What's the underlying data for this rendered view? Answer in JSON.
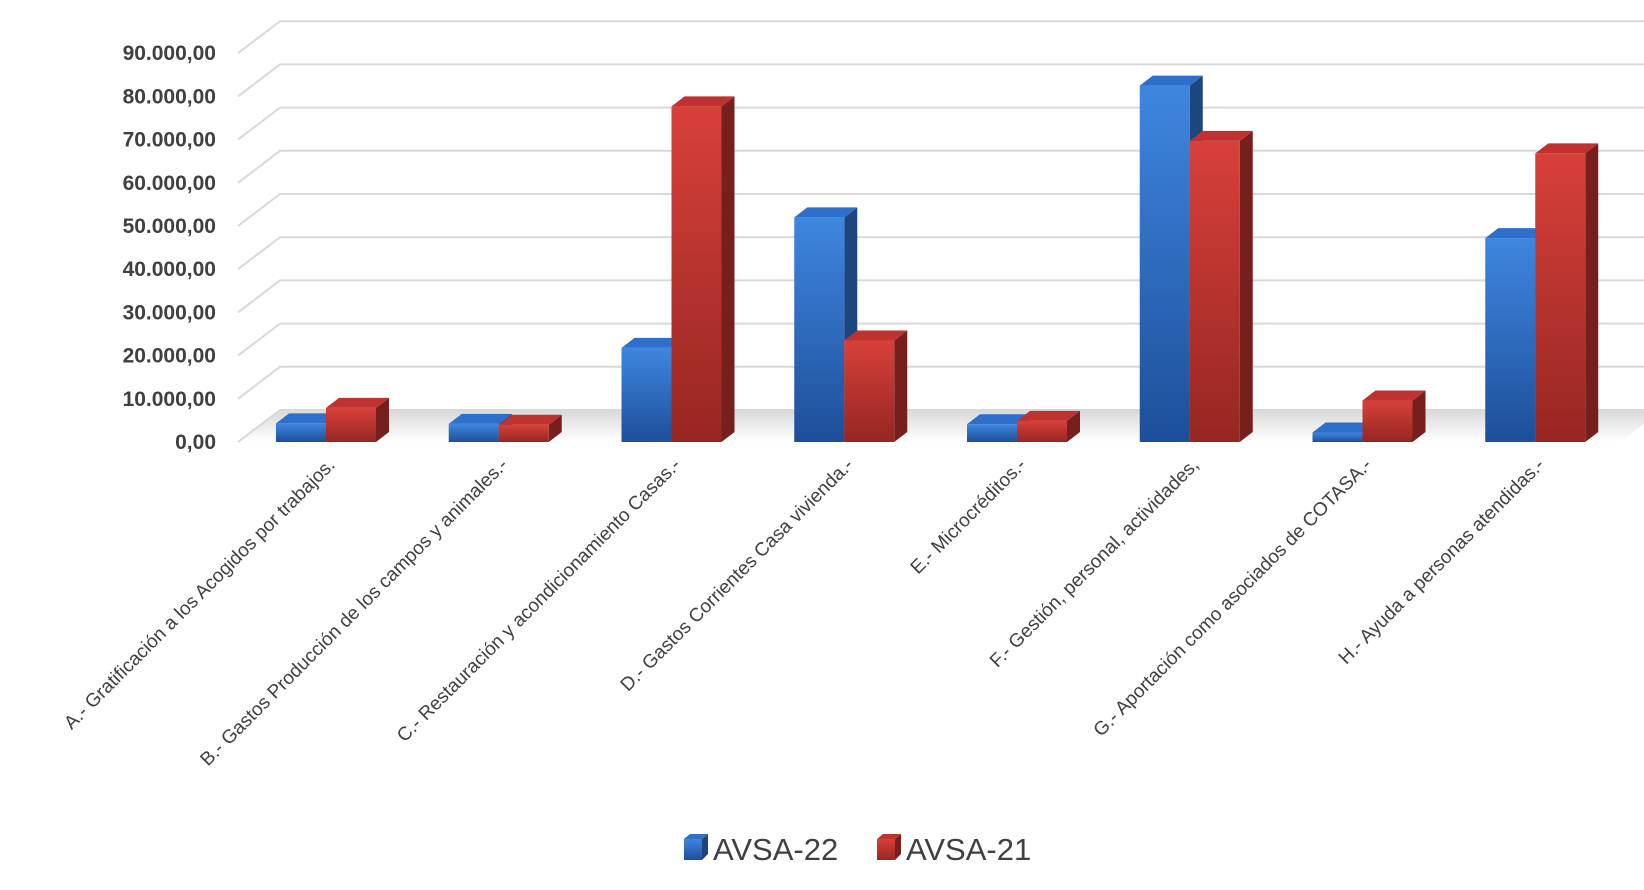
{
  "chart_data": {
    "type": "bar",
    "subtype": "3d-clustered-column",
    "categories": [
      "A.- Gratificación a los Acogidos por trabajos.",
      "B.- Gastos  Producción de los campos y animales.-",
      "C.- Restauración y acondicionamiento Casas.-",
      "D.- Gastos Corrientes Casa vivienda.-",
      "E.- Microcréditos.-",
      "F.- Gestión, personal, actividades,",
      "G.- Aportación como asociados de COTASA.-",
      "H.- Ayuda a personas atendidas.-"
    ],
    "series": [
      {
        "name": "AVSA-22",
        "values": [
          4300,
          4200,
          21800,
          52000,
          4100,
          82500,
          2200,
          47200
        ],
        "color": "#2e6fcb"
      },
      {
        "name": "AVSA-21",
        "values": [
          7900,
          4000,
          77700,
          23500,
          4900,
          69700,
          9600,
          66800
        ],
        "color": "#c0322f"
      }
    ],
    "yticks": [
      "0,00",
      "10.000,00",
      "20.000,00",
      "30.000,00",
      "40.000,00",
      "50.000,00",
      "60.000,00",
      "70.000,00",
      "80.000,00",
      "90.000,00"
    ],
    "ylim": [
      0,
      95000
    ],
    "title": "",
    "xlabel": "",
    "ylabel": "",
    "grid": true,
    "legend_position": "bottom"
  }
}
